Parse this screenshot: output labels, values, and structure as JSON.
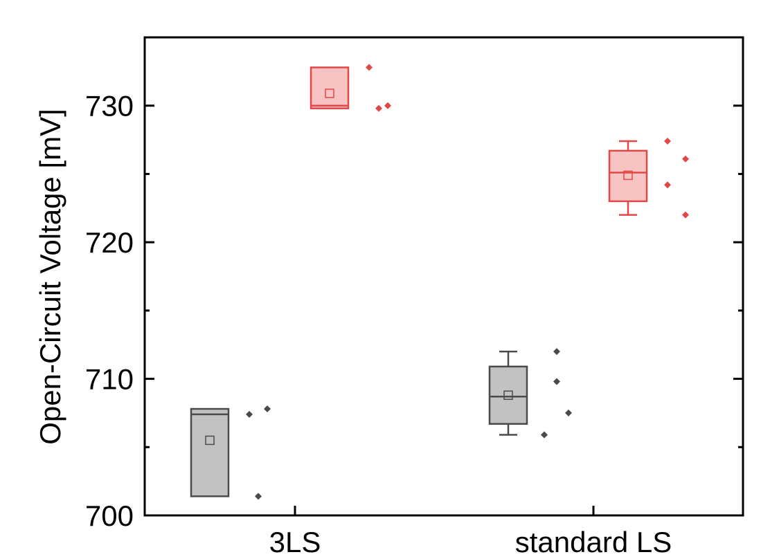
{
  "chart_data": {
    "type": "box",
    "ylabel": "Open-Circuit Voltage [mV]",
    "ylim": [
      700,
      735
    ],
    "yticks": [
      700,
      710,
      720,
      730
    ],
    "y_minor_ticks": [
      705,
      715,
      725
    ],
    "categories": [
      "3LS",
      "standard LS"
    ],
    "series_colors": {
      "gray": "#4a4a4a",
      "gray_fill": "#c2c2c2",
      "red": "#e04848",
      "red_fill": "#f7c3c3"
    },
    "groups": [
      {
        "category": "3LS",
        "boxes": [
          {
            "color": "gray",
            "q1": 701.4,
            "median": 707.4,
            "q3": 707.8,
            "mean": 705.5,
            "whisker_low": 701.4,
            "whisker_high": 707.8,
            "points": [
              707.4,
              701.4,
              707.8
            ]
          },
          {
            "color": "red",
            "q1": 729.8,
            "median": 730.0,
            "q3": 732.8,
            "mean": 730.9,
            "whisker_low": 729.8,
            "whisker_high": 732.8,
            "points": [
              732.8,
              729.8,
              730.0
            ]
          }
        ]
      },
      {
        "category": "standard LS",
        "boxes": [
          {
            "color": "gray",
            "q1": 706.7,
            "median": 708.7,
            "q3": 710.9,
            "mean": 708.8,
            "whisker_low": 705.9,
            "whisker_high": 712.0,
            "points": [
              705.9,
              709.8,
              712.0,
              707.5
            ]
          },
          {
            "color": "red",
            "q1": 723.0,
            "median": 725.1,
            "q3": 726.7,
            "mean": 724.9,
            "whisker_low": 722.0,
            "whisker_high": 727.4,
            "points": [
              724.2,
              727.4,
              722.0,
              726.1
            ]
          }
        ]
      }
    ]
  }
}
